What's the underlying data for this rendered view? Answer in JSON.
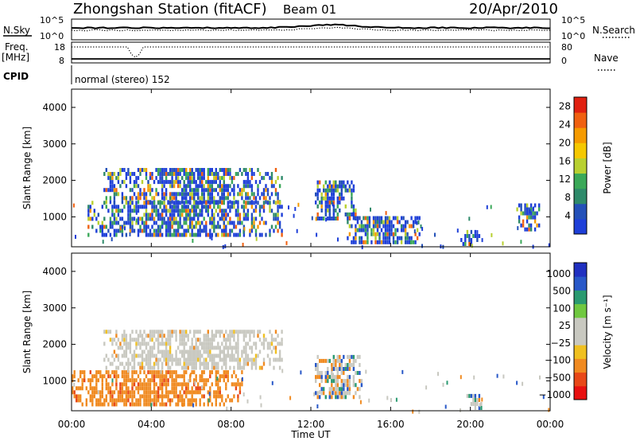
{
  "header": {
    "station": "Zhongshan Station (fitACF)",
    "beam": "Beam 01",
    "date": "20/Apr/2010"
  },
  "panels": {
    "nsky": {
      "label": "N.Sky",
      "left_ticks": [
        "10^5",
        "10^0"
      ],
      "right_ticks": [
        "10^5",
        "10^0"
      ],
      "right_label": "N.Search"
    },
    "freq": {
      "label_top": "Freq.",
      "label_unit": "[MHz]",
      "left_ticks": [
        "18",
        "8"
      ],
      "right_ticks": [
        "80",
        "0"
      ],
      "right_label": "Nave"
    },
    "cpid": {
      "label": "CPID",
      "text": "normal (stereo) 152"
    }
  },
  "colors": {
    "power_scale": [
      "#1e3fd8",
      "#2350b8",
      "#2e8a6a",
      "#3aa858",
      "#b8d030",
      "#f5c800",
      "#f59a00",
      "#f06010",
      "#e02010"
    ],
    "velocity_scale": [
      "#e81010",
      "#e84818",
      "#f08a20",
      "#f0c020",
      "#c8c8c0",
      "#c8c8c0",
      "#70c840",
      "#2a9a70",
      "#2858c8",
      "#2030c0"
    ],
    "data_gray": "#c8c8c0"
  },
  "chart_data": [
    {
      "type": "heatmap",
      "name": "power",
      "xlabel": "",
      "ylabel": "Slant Range [km]",
      "xlim": [
        "00:00",
        "24:00"
      ],
      "ylim": [
        180,
        4500
      ],
      "yticks": [
        1000,
        2000,
        3000,
        4000
      ],
      "colorbar": {
        "label": "Power [dB]",
        "ticks": [
          4,
          8,
          12,
          16,
          20,
          24,
          28
        ],
        "range": [
          0,
          30
        ]
      },
      "echo_regions_hours_km": [
        {
          "t0": 1.6,
          "t1": 10.5,
          "r0": 1350,
          "r1": 2300,
          "note": "upper band"
        },
        {
          "t0": 0.8,
          "t1": 10.5,
          "r0": 450,
          "r1": 1350,
          "note": "lower band"
        },
        {
          "t0": 12.2,
          "t1": 14.2,
          "r0": 900,
          "r1": 2000
        },
        {
          "t0": 13.8,
          "t1": 17.5,
          "r0": 250,
          "r1": 1000
        },
        {
          "t0": 19.5,
          "t1": 20.5,
          "r0": 200,
          "r1": 600
        },
        {
          "t0": 22.3,
          "t1": 23.5,
          "r0": 600,
          "r1": 1300
        }
      ]
    },
    {
      "type": "heatmap",
      "name": "velocity",
      "xlabel": "Time UT",
      "ylabel": "Slant Range [km]",
      "xlim": [
        "00:00",
        "24:00"
      ],
      "xticks": [
        "00:00",
        "04:00",
        "08:00",
        "12:00",
        "16:00",
        "20:00",
        "00:00"
      ],
      "ylim": [
        180,
        4500
      ],
      "yticks": [
        1000,
        2000,
        3000,
        4000
      ],
      "colorbar": {
        "label": "Velocity [m s⁻¹]",
        "ticks": [
          "1000",
          "500",
          "100",
          "25",
          "−25",
          "−100",
          "−500",
          "−1000"
        ]
      },
      "echo_regions_hours_km": [
        {
          "t0": 1.6,
          "t1": 10.5,
          "r0": 1300,
          "r1": 2300,
          "note": "mostly ground scatter (gray)"
        },
        {
          "t0": 0.0,
          "t1": 8.5,
          "r0": 300,
          "r1": 1200,
          "note": "negative velocities (orange)"
        },
        {
          "t0": 12.2,
          "t1": 14.5,
          "r0": 500,
          "r1": 1700
        },
        {
          "t0": 19.8,
          "t1": 20.6,
          "r0": 200,
          "r1": 600
        }
      ]
    }
  ]
}
